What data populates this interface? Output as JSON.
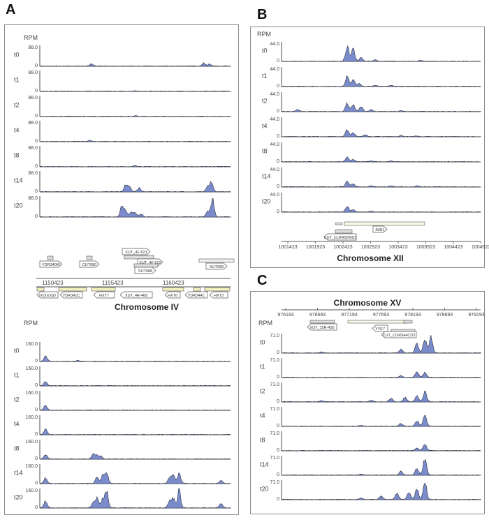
{
  "colors": {
    "fill": "#7a8ccc",
    "stroke": "#2a2f3e",
    "axis": "#222",
    "text": "#444",
    "box": "#888"
  },
  "panels": {
    "A": {
      "letter": "A",
      "chromosome": "Chromosome IV"
    },
    "B": {
      "letter": "B",
      "chromosome": "Chromosome XII"
    },
    "C": {
      "letter": "C",
      "chromosome": "Chromosome XV"
    }
  },
  "rpm_label": "RPM",
  "timepoints": [
    "t0",
    "t1",
    "t2",
    "t4",
    "t8",
    "t14",
    "t20"
  ],
  "A_top": {
    "ymax": "88.0",
    "ymin": "0",
    "coords": [
      "1150423",
      "1155423",
      "1160423"
    ],
    "genes_top": [
      "YDR340W",
      "CUT080",
      "XUT_4F-521",
      "XUT_4F-522",
      "SUT088",
      "SUT089"
    ],
    "genes_bottom": [
      "IX(XXX)D",
      "YDR341C",
      "HXT7",
      "XUT_4R-468",
      "HXT6",
      "YDR344C",
      "HXT3"
    ],
    "signal": [
      [
        [
          0.27,
          0.12
        ],
        [
          0.86,
          0.15
        ],
        [
          0.89,
          0.1
        ]
      ],
      [
        [
          0.5,
          0.03
        ]
      ],
      [
        [
          0.5,
          0.03
        ]
      ],
      [
        [
          0.26,
          0.05
        ]
      ],
      [
        [
          0.5,
          0.05
        ]
      ],
      [
        [
          0.45,
          0.35
        ],
        [
          0.47,
          0.25
        ],
        [
          0.52,
          0.2
        ],
        [
          0.88,
          0.25
        ],
        [
          0.9,
          0.5
        ]
      ],
      [
        [
          0.43,
          0.55
        ],
        [
          0.45,
          0.35
        ],
        [
          0.48,
          0.25
        ],
        [
          0.5,
          0.2
        ],
        [
          0.53,
          0.15
        ],
        [
          0.88,
          0.3
        ],
        [
          0.905,
          0.9
        ]
      ]
    ]
  },
  "A_bottom": {
    "ymax": "160.0",
    "ymin": "0",
    "signal": [
      [
        [
          0.03,
          0.3
        ],
        [
          0.2,
          0.05
        ]
      ],
      [
        [
          0.03,
          0.2
        ]
      ],
      [
        [
          0.03,
          0.25
        ]
      ],
      [
        [
          0.03,
          0.3
        ]
      ],
      [
        [
          0.03,
          0.25
        ],
        [
          0.28,
          0.25
        ],
        [
          0.3,
          0.2
        ],
        [
          0.32,
          0.15
        ]
      ],
      [
        [
          0.03,
          0.3
        ],
        [
          0.3,
          0.35
        ],
        [
          0.33,
          0.45
        ],
        [
          0.35,
          0.6
        ],
        [
          0.68,
          0.3
        ],
        [
          0.7,
          0.45
        ],
        [
          0.73,
          0.55
        ],
        [
          0.95,
          0.15
        ]
      ],
      [
        [
          0.03,
          0.35
        ],
        [
          0.28,
          0.3
        ],
        [
          0.3,
          0.55
        ],
        [
          0.33,
          0.45
        ],
        [
          0.35,
          0.95
        ],
        [
          0.68,
          0.4
        ],
        [
          0.7,
          0.5
        ],
        [
          0.73,
          0.95
        ],
        [
          0.95,
          0.25
        ]
      ]
    ]
  },
  "B": {
    "ymax": "44.0",
    "ymin": "0",
    "coords": [
      "1001423",
      "1001923",
      "1002423",
      "1002923",
      "1003423",
      "1003923",
      "1004423",
      "1004923"
    ],
    "genes": [
      "IMD1",
      "CUT_CLR432WD2"
    ],
    "signal": [
      [
        [
          0.33,
          0.85
        ],
        [
          0.36,
          0.65
        ],
        [
          0.4,
          0.2
        ],
        [
          0.47,
          0.08
        ],
        [
          0.7,
          0.05
        ]
      ],
      [
        [
          0.33,
          0.55
        ],
        [
          0.36,
          0.4
        ],
        [
          0.39,
          0.15
        ],
        [
          0.47,
          0.06
        ],
        [
          0.55,
          0.05
        ]
      ],
      [
        [
          0.33,
          0.45
        ],
        [
          0.36,
          0.35
        ],
        [
          0.4,
          0.25
        ],
        [
          0.45,
          0.1
        ],
        [
          0.6,
          0.06
        ],
        [
          0.08,
          0.1
        ]
      ],
      [
        [
          0.33,
          0.35
        ],
        [
          0.36,
          0.2
        ],
        [
          0.42,
          0.1
        ],
        [
          0.6,
          0.05
        ],
        [
          0.68,
          0.04
        ]
      ],
      [
        [
          0.33,
          0.25
        ],
        [
          0.36,
          0.12
        ],
        [
          0.45,
          0.05
        ],
        [
          0.55,
          0.04
        ]
      ],
      [
        [
          0.33,
          0.3
        ],
        [
          0.36,
          0.15
        ],
        [
          0.45,
          0.06
        ],
        [
          0.55,
          0.05
        ],
        [
          0.68,
          0.05
        ]
      ],
      [
        [
          0.33,
          0.3
        ],
        [
          0.36,
          0.12
        ],
        [
          0.45,
          0.05
        ]
      ]
    ]
  },
  "C": {
    "ymax": "71.0",
    "ymin": "0",
    "coords": [
      "976193",
      "976693",
      "977193",
      "977693",
      "978193",
      "978693",
      "979193"
    ],
    "genes": [
      "XUT_15R-430",
      "YYE7",
      "CUT_COR344CD2"
    ],
    "signal": [
      [
        [
          0.68,
          0.55
        ],
        [
          0.72,
          0.75
        ],
        [
          0.75,
          0.9
        ],
        [
          0.6,
          0.2
        ],
        [
          0.2,
          0.05
        ]
      ],
      [
        [
          0.68,
          0.3
        ],
        [
          0.72,
          0.25
        ],
        [
          0.6,
          0.1
        ]
      ],
      [
        [
          0.55,
          0.2
        ],
        [
          0.62,
          0.25
        ],
        [
          0.68,
          0.3
        ],
        [
          0.72,
          0.55
        ],
        [
          0.45,
          0.08
        ],
        [
          0.2,
          0.06
        ]
      ],
      [
        [
          0.6,
          0.15
        ],
        [
          0.68,
          0.3
        ],
        [
          0.72,
          0.6
        ],
        [
          0.4,
          0.05
        ]
      ],
      [
        [
          0.68,
          0.15
        ],
        [
          0.72,
          0.35
        ]
      ],
      [
        [
          0.6,
          0.2
        ],
        [
          0.68,
          0.35
        ],
        [
          0.72,
          0.95
        ],
        [
          0.4,
          0.05
        ]
      ],
      [
        [
          0.5,
          0.2
        ],
        [
          0.58,
          0.35
        ],
        [
          0.64,
          0.4
        ],
        [
          0.68,
          0.55
        ],
        [
          0.72,
          0.9
        ],
        [
          0.4,
          0.06
        ]
      ]
    ]
  }
}
